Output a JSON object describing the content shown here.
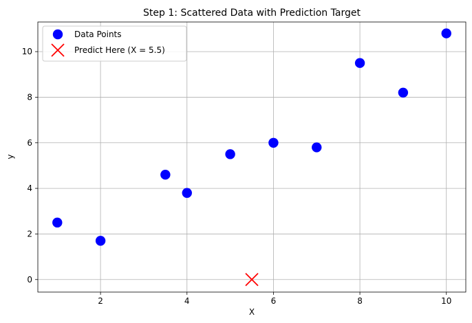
{
  "chart_data": {
    "type": "scatter",
    "title": "Step 1: Scattered Data with Prediction Target",
    "xlabel": "X",
    "ylabel": "y",
    "xlim": [
      0.55,
      10.45
    ],
    "ylim": [
      -0.55,
      11.3
    ],
    "xticks": [
      2,
      4,
      6,
      8,
      10
    ],
    "yticks": [
      0,
      2,
      4,
      6,
      8,
      10
    ],
    "grid": true,
    "legend_position": "top-left",
    "series": [
      {
        "name": "Data Points",
        "marker": "circle",
        "color": "#0000ff",
        "x": [
          1,
          2,
          3.5,
          4,
          5,
          6,
          7,
          8,
          9,
          10
        ],
        "y": [
          2.5,
          1.7,
          4.6,
          3.8,
          5.5,
          6.0,
          5.8,
          9.5,
          8.2,
          10.8
        ]
      },
      {
        "name": "Predict Here (X = 5.5)",
        "marker": "x",
        "color": "#ff0000",
        "x": [
          5.5
        ],
        "y": [
          0
        ]
      }
    ]
  }
}
